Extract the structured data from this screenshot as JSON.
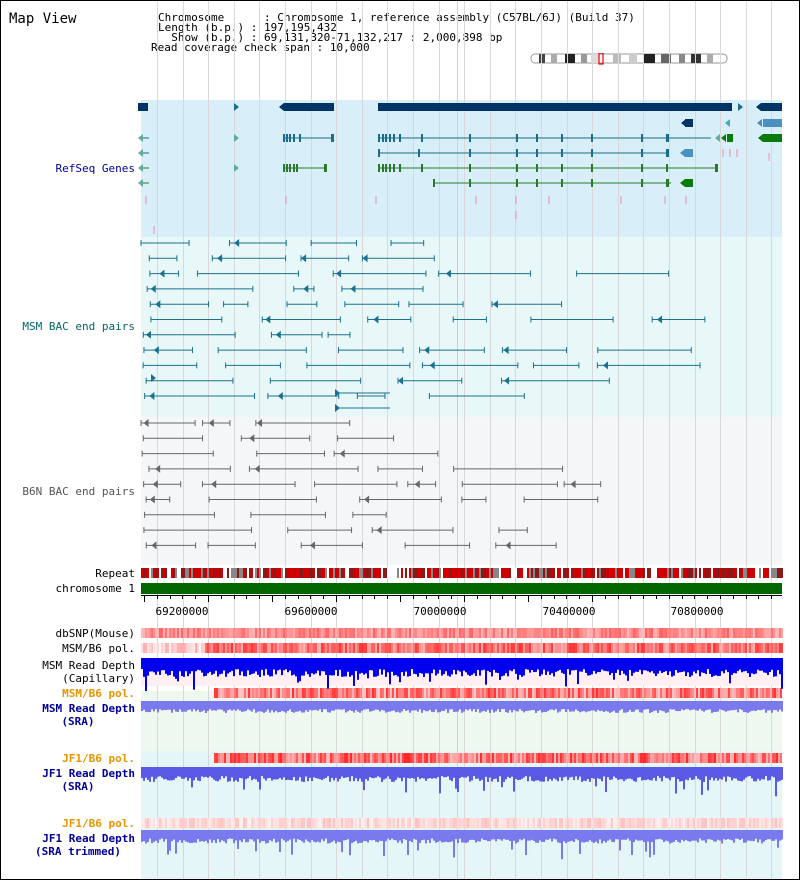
{
  "title": "Map View",
  "header": {
    "chromosome_key": "Chromosome",
    "chromosome_val": "Chromosome 1, reference assembly (C57BL/6J) (Build 37)",
    "length_key": "Length (b.p.)",
    "length_val": "197,195,432",
    "show_key": "Show (b.p.)",
    "show_val": "69,131,320-71,132,217 : 2,000,898 bp",
    "span_key": "Read coverage check span",
    "span_val": "10,000"
  },
  "tracks": {
    "refseq": "RefSeq Genes",
    "msm_bac": "MSM BAC end pairs",
    "b6n_bac": "B6N BAC end pairs",
    "repeat": "Repeat",
    "chromosome": "chromosome 1",
    "dbsnp": "dbSNP(Mouse)",
    "msm_b6_pol_1": "MSM/B6 pol.",
    "msm_depth_cap_1": "MSM Read Depth",
    "msm_depth_cap_2": "(Capillary)",
    "msm_b6_pol_2": "MSM/B6 pol.",
    "msm_depth_sra_1": "MSM Read Depth",
    "msm_depth_sra_2": "(SRA)",
    "jf1_b6_pol_1": "JF1/B6 pol.",
    "jf1_depth_sra_1": "JF1 Read Depth",
    "jf1_depth_sra_2": "(SRA)",
    "jf1_b6_pol_2": "JF1/B6 pol.",
    "jf1_depth_trim_1": "JF1 Read Depth",
    "jf1_depth_trim_2": "(SRA trimmed)"
  },
  "axis": {
    "ticks": [
      "69200000",
      "69600000",
      "70000000",
      "70400000",
      "70800000"
    ]
  },
  "colors": {
    "refseq_bg": "#d8eef8",
    "msm_bac_bg": "#e8f8f8",
    "b6n_bac_bg": "#f4f6f8",
    "refseq_label": "#000099",
    "msm_label": "#006666",
    "b6n_label": "#555555",
    "pol_label": "#e69500",
    "depth_label": "#000099",
    "chromosome_bar": "#006600",
    "depth_blue": "#0000ee",
    "depth_light": "#7a7aee"
  }
}
